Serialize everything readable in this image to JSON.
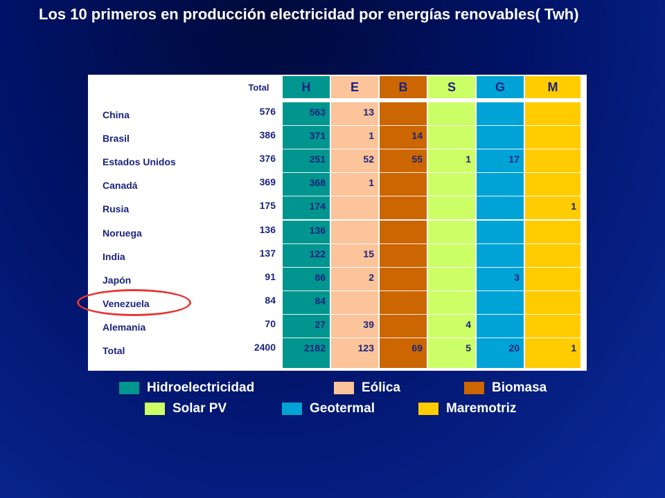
{
  "title": "Los 10 primeros en producción electricidad por energías renovables( Twh)",
  "chart_data": {
    "type": "table",
    "total_header": "Total",
    "columns": [
      {
        "key": "H",
        "label": "H",
        "color": "#00968f"
      },
      {
        "key": "E",
        "label": "E",
        "color": "#fbc49a"
      },
      {
        "key": "B",
        "label": "B",
        "color": "#cc6600"
      },
      {
        "key": "S",
        "label": "S",
        "color": "#ccff66"
      },
      {
        "key": "G",
        "label": "G",
        "color": "#00a3d6"
      },
      {
        "key": "M",
        "label": "M",
        "color": "#ffcc00"
      }
    ],
    "rows": [
      {
        "country": "China",
        "total": "576",
        "values": [
          "563",
          "13",
          "",
          "",
          "",
          ""
        ]
      },
      {
        "country": "Brasil",
        "total": "386",
        "values": [
          "371",
          "1",
          "14",
          "",
          "",
          ""
        ]
      },
      {
        "country": "Estados Unidos",
        "total": "376",
        "values": [
          "251",
          "52",
          "55",
          "1",
          "17",
          ""
        ]
      },
      {
        "country": "Canadá",
        "total": "369",
        "values": [
          "368",
          "1",
          "",
          "",
          "",
          ""
        ]
      },
      {
        "country": "Rusia",
        "total": "175",
        "values": [
          "174",
          "",
          "",
          "",
          "",
          "1"
        ]
      },
      {
        "country": "Noruega",
        "total": "136",
        "values": [
          "136",
          "",
          "",
          "",
          "",
          ""
        ]
      },
      {
        "country": "India",
        "total": "137",
        "values": [
          "122",
          "15",
          "",
          "",
          "",
          ""
        ]
      },
      {
        "country": "Japón",
        "total": "91",
        "values": [
          "86",
          "2",
          "",
          "",
          "3",
          ""
        ]
      },
      {
        "country": "Venezuela",
        "total": "84",
        "values": [
          "84",
          "",
          "",
          "",
          "",
          ""
        ],
        "highlighted": true
      },
      {
        "country": "Alemania",
        "total": "70",
        "values": [
          "27",
          "39",
          "",
          "4",
          "",
          ""
        ]
      },
      {
        "country": "Total",
        "total": "2400",
        "values": [
          "2182",
          "123",
          "69",
          "5",
          "20",
          "1"
        ]
      }
    ]
  },
  "legend": [
    {
      "label": "Hidroelectricidad",
      "color": "#00968f"
    },
    {
      "label": "Eólica",
      "color": "#fbc49a"
    },
    {
      "label": "Biomasa",
      "color": "#cc6600"
    },
    {
      "label": "Solar PV",
      "color": "#ccff66"
    },
    {
      "label": "Geotermal",
      "color": "#00a3d6"
    },
    {
      "label": "Maremotriz",
      "color": "#ffcc00"
    }
  ]
}
